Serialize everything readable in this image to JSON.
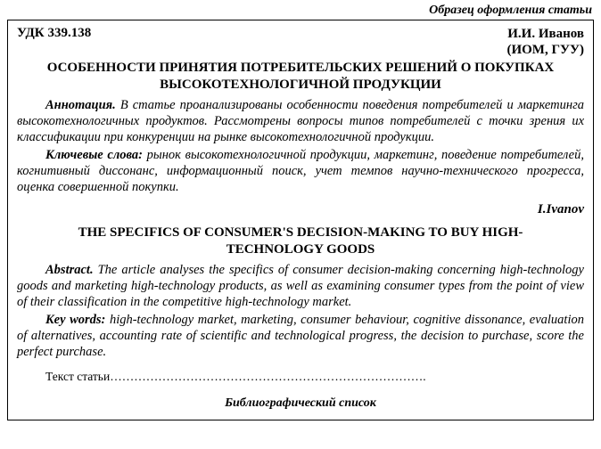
{
  "sample_label": "Образец оформления статьи",
  "udc_label": "УДК 339.138",
  "author_ru": "И.И. Иванов",
  "affiliation_ru": "(ИОМ, ГУУ)",
  "title_ru_line1": "ОСОБЕННОСТИ ПРИНЯТИЯ ПОТРЕБИТЕЛЬСКИХ РЕШЕНИЙ О ПОКУПКАХ",
  "title_ru_line2": "ВЫСОКОТЕХНОЛОГИЧНОЙ ПРОДУКЦИИ",
  "annotation_label_ru": "Аннотация.",
  "annotation_text_ru": " В статье проанализированы особенности поведения потребителей и маркетинга высокотехнологичных продуктов. Рассмотрены вопросы типов потребителей с точки зрения их классификации при конкуренции на рынке высокотехнологичной продукции.",
  "keywords_label_ru": "Ключевые слова:",
  "keywords_text_ru": " рынок высокотехнологичной продукции, маркетинг, поведение потребителей, когнитивный диссонанс, информационный поиск, учет темпов научно-технического прогресса, оценка совершенной покупки.",
  "author_en": "I.Ivanov",
  "title_en_line1": "THE SPECIFICS OF CONSUMER'S DECISION-MAKING TO BUY HIGH-",
  "title_en_line2": "TECHNOLOGY GOODS",
  "abstract_label_en": "Abstract.",
  "abstract_text_en": " The article analyses the specifics of consumer decision-making concerning high-technology goods and marketing high-technology products, as well as examining consumer types from the point of view of their classification in the competitive high-technology market.",
  "keywords_label_en": "Key words:",
  "keywords_text_en": " high-technology market, marketing, consumer behaviour, cognitive dissonance, evaluation of alternatives, accounting rate of scientific and technological progress, the decision to purchase, score the perfect purchase.",
  "body_text_label": "Текст статьи",
  "body_text_dots": "…………………………………………………………………….",
  "bibliography_label": "Библиографический список",
  "colors": {
    "text": "#000000",
    "background": "#ffffff",
    "border": "#000000"
  },
  "typography": {
    "base_font": "Times New Roman",
    "title_size_pt": 11,
    "body_size_pt": 11
  }
}
